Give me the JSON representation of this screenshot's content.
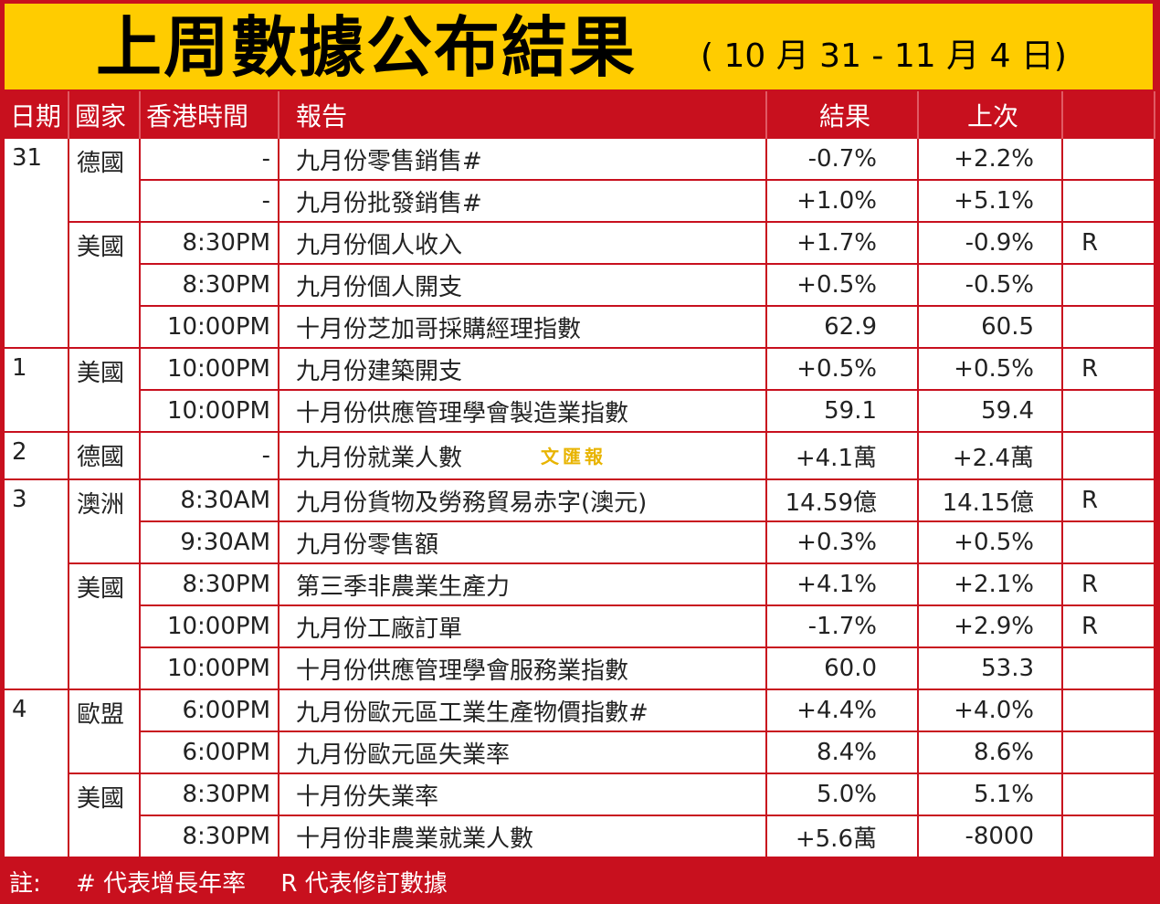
{
  "title": {
    "main": "上周數據公布結果",
    "dates": "( 10 月 31 - 11 月 4 日)"
  },
  "columns": {
    "date": "日期",
    "country": "國家",
    "time": "香港時間",
    "report": "報告",
    "result": "結果",
    "previous": "上次",
    "flag": ""
  },
  "rows": [
    {
      "time": "-",
      "report": "九月份零售銷售#",
      "result": "-0.7%",
      "previous": "+2.2%",
      "flag": ""
    },
    {
      "time": "-",
      "report": "九月份批發銷售#",
      "result": "+1.0%",
      "previous": "+5.1%",
      "flag": ""
    },
    {
      "time": "8:30PM",
      "report": "九月份個人收入",
      "result": "+1.7%",
      "previous": "-0.9%",
      "flag": "R"
    },
    {
      "time": "8:30PM",
      "report": "九月份個人開支",
      "result": "+0.5%",
      "previous": "-0.5%",
      "flag": ""
    },
    {
      "time": "10:00PM",
      "report": "十月份芝加哥採購經理指數",
      "result": "62.9",
      "previous": "60.5",
      "flag": ""
    },
    {
      "time": "10:00PM",
      "report": "九月份建築開支",
      "result": "+0.5%",
      "previous": "+0.5%",
      "flag": "R"
    },
    {
      "time": "10:00PM",
      "report": "十月份供應管理學會製造業指數",
      "result": "59.1",
      "previous": "59.4",
      "flag": ""
    },
    {
      "time": "-",
      "report": "九月份就業人數",
      "result": "+4.1萬",
      "previous": "+2.4萬",
      "flag": ""
    },
    {
      "time": "8:30AM",
      "report": "九月份貨物及勞務貿易赤字(澳元)",
      "result": "14.59億",
      "previous": "14.15億",
      "flag": "R"
    },
    {
      "time": "9:30AM",
      "report": "九月份零售額",
      "result": "+0.3%",
      "previous": "+0.5%",
      "flag": ""
    },
    {
      "time": "8:30PM",
      "report": "第三季非農業生產力",
      "result": "+4.1%",
      "previous": "+2.1%",
      "flag": "R"
    },
    {
      "time": "10:00PM",
      "report": "九月份工廠訂單",
      "result": "-1.7%",
      "previous": "+2.9%",
      "flag": "R"
    },
    {
      "time": "10:00PM",
      "report": "十月份供應管理學會服務業指數",
      "result": "60.0",
      "previous": "53.3",
      "flag": ""
    },
    {
      "time": "6:00PM",
      "report": "九月份歐元區工業生產物價指數#",
      "result": "+4.4%",
      "previous": "+4.0%",
      "flag": ""
    },
    {
      "time": "6:00PM",
      "report": "九月份歐元區失業率",
      "result": "8.4%",
      "previous": "8.6%",
      "flag": ""
    },
    {
      "time": "8:30PM",
      "report": "十月份失業率",
      "result": "5.0%",
      "previous": "5.1%",
      "flag": ""
    },
    {
      "time": "8:30PM",
      "report": "十月份非農業就業人數",
      "result": "+5.6萬",
      "previous": "-8000",
      "flag": ""
    }
  ],
  "dates": {
    "d31": "31",
    "d1": "1",
    "d2": "2",
    "d3": "3",
    "d4": "4"
  },
  "countries": {
    "c_de_31": "德國",
    "c_us_31": "美國",
    "c_us_1": "美國",
    "c_de_2": "德國",
    "c_au_3": "澳洲",
    "c_us_3": "美國",
    "c_eu_4": "歐盟",
    "c_us_4": "美國"
  },
  "watermark": "文匯報",
  "footer": {
    "note_label": "註:",
    "hash_note": "# 代表增長年率",
    "r_note": "R 代表修訂數據"
  }
}
